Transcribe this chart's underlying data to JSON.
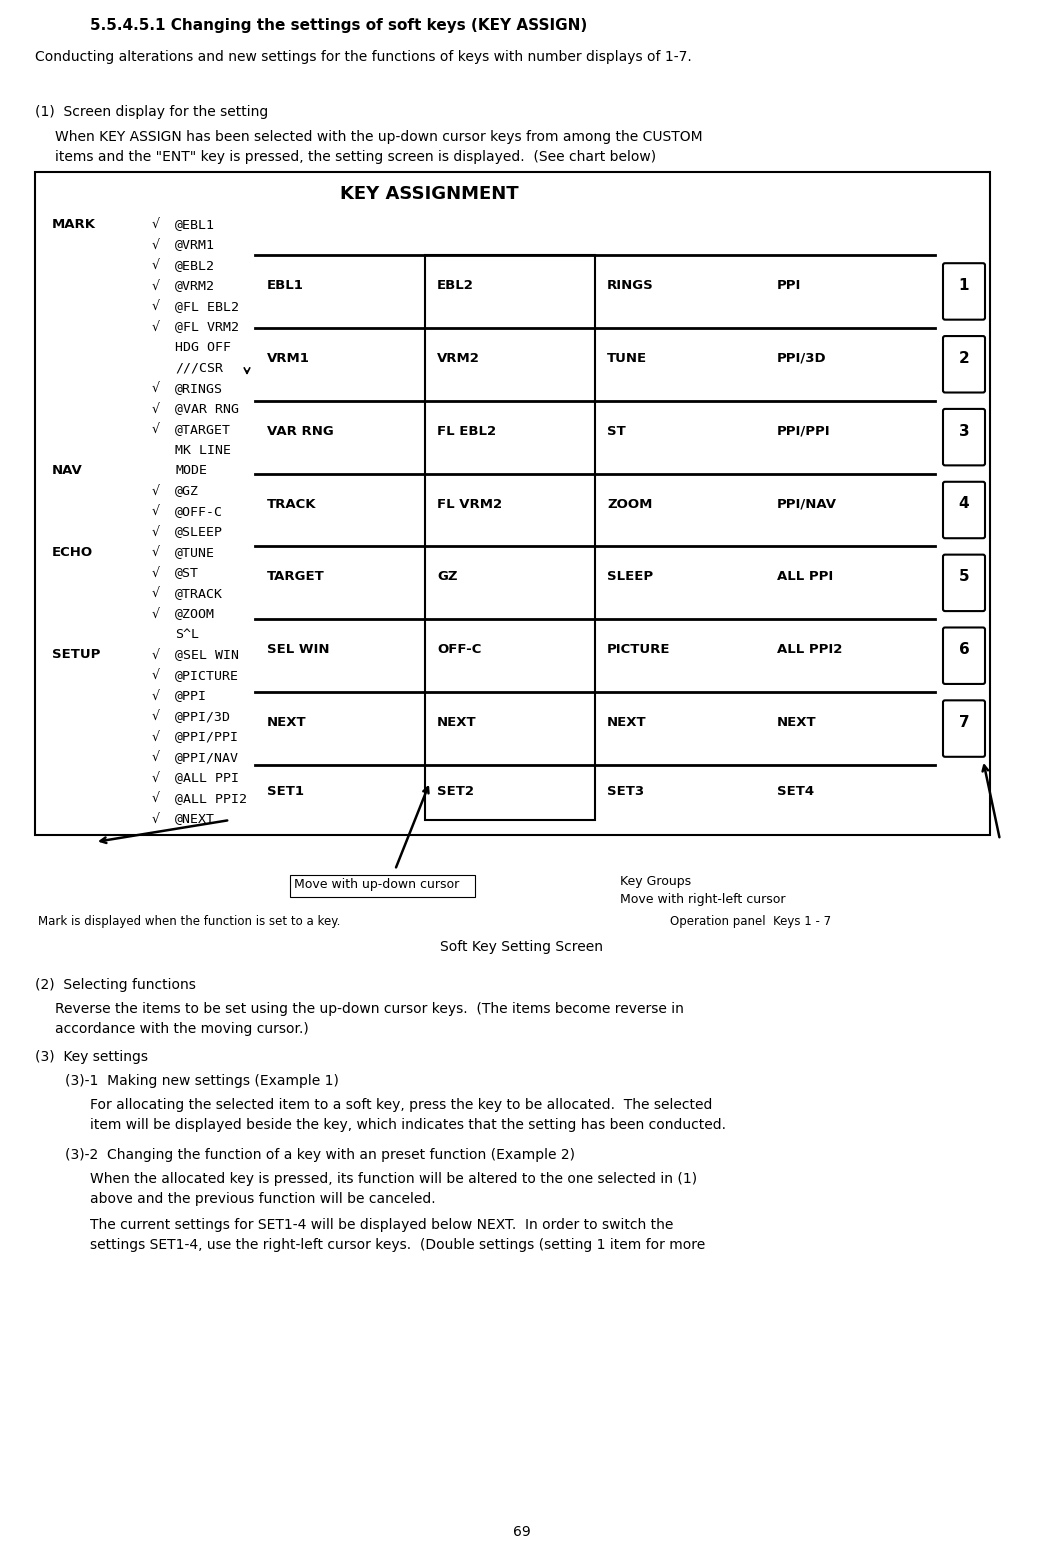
{
  "title": "5.5.4.5.1 Changing the settings of soft keys (KEY ASSIGN)",
  "subtitle": "Conducting alterations and new settings for the functions of keys with number displays of 1-7.",
  "section1_header": "(1)  Screen display for the setting",
  "section1_text1": "When KEY ASSIGN has been selected with the up-down cursor keys from among the CUSTOM",
  "section1_text2": "items and the \"ENT\" key is pressed, the setting screen is displayed.  (See chart below)",
  "section2_header": "(2)  Selecting functions",
  "section2_text1": "Reverse the items to be set using the up-down cursor keys.  (The items become reverse in",
  "section2_text2": "accordance with the moving cursor.)",
  "section3_header": "(3)  Key settings",
  "section31_header": "(3)-1  Making new settings (Example 1)",
  "section31_text1": "For allocating the selected item to a soft key, press the key to be allocated.  The selected",
  "section31_text2": "item will be displayed beside the key, which indicates that the setting has been conducted.",
  "section32_header": "(3)-2  Changing the function of a key with an preset function (Example 2)",
  "section32_text1": "When the allocated key is pressed, its function will be altered to the one selected in (1)",
  "section32_text2": "above and the previous function will be canceled.",
  "section32_text3": "The current settings for SET1-4 will be displayed below NEXT.  In order to switch the",
  "section32_text4": "settings SET1-4, use the right-left cursor keys.  (Double settings (setting 1 item for more",
  "page_number": "69",
  "chart_title": "KEY ASSIGNMENT",
  "left_groups": [
    {
      "label": "MARK",
      "label_row": 0,
      "items": [
        {
          "check": true,
          "text": "EBL1",
          "row": 0
        },
        {
          "check": true,
          "text": "VRM1",
          "row": 1
        },
        {
          "check": true,
          "text": "EBL2",
          "row": 2
        },
        {
          "check": true,
          "text": "VRM2",
          "row": 3
        },
        {
          "check": true,
          "text": "FL EBL2",
          "row": 4
        },
        {
          "check": true,
          "text": "FL VRM2",
          "row": 5
        },
        {
          "check": false,
          "text": "HDG OFF",
          "row": 6
        },
        {
          "check": false,
          "text": "///CSR",
          "row": 7
        },
        {
          "check": true,
          "text": "RINGS",
          "row": 8,
          "arrow": true
        },
        {
          "check": true,
          "text": "VAR RNG",
          "row": 9
        },
        {
          "check": true,
          "text": "TARGET",
          "row": 10
        },
        {
          "check": false,
          "text": "MK LINE",
          "row": 11
        }
      ]
    },
    {
      "label": "NAV",
      "label_row": 12,
      "items": [
        {
          "check": false,
          "text": "MODE",
          "row": 12
        },
        {
          "check": true,
          "text": "GZ",
          "row": 13
        },
        {
          "check": true,
          "text": "OFF-C",
          "row": 14
        },
        {
          "check": true,
          "text": "SLEEP",
          "row": 15
        }
      ]
    },
    {
      "label": "ECHO",
      "label_row": 16,
      "items": [
        {
          "check": true,
          "text": "TUNE",
          "row": 16
        },
        {
          "check": true,
          "text": "ST",
          "row": 17
        },
        {
          "check": true,
          "text": "TRACK",
          "row": 18
        },
        {
          "check": true,
          "text": "ZOOM",
          "row": 19
        },
        {
          "check": false,
          "text": "S^L",
          "row": 20
        }
      ]
    },
    {
      "label": "SETUP",
      "label_row": 21,
      "items": [
        {
          "check": true,
          "text": "SEL WIN",
          "row": 21
        },
        {
          "check": true,
          "text": "PICTURE",
          "row": 22
        },
        {
          "check": true,
          "text": "PPI",
          "row": 23
        },
        {
          "check": true,
          "text": "PPI/3D",
          "row": 24
        },
        {
          "check": true,
          "text": "PPI/PPI",
          "row": 25
        },
        {
          "check": true,
          "text": "PPI/NAV",
          "row": 26
        },
        {
          "check": true,
          "text": "ALL PPI",
          "row": 27
        },
        {
          "check": true,
          "text": "ALL PPI2",
          "row": 28
        },
        {
          "check": true,
          "text": "NEXT",
          "row": 29
        }
      ]
    }
  ],
  "key_rows": [
    {
      "items": [
        "EBL1",
        "EBL2",
        "RINGS",
        "PPI"
      ],
      "key": "1"
    },
    {
      "items": [
        "VRM1",
        "VRM2",
        "TUNE",
        "PPI/3D"
      ],
      "key": "2"
    },
    {
      "items": [
        "VAR RNG",
        "FL EBL2",
        "ST",
        "PPI/PPI"
      ],
      "key": "3"
    },
    {
      "items": [
        "TRACK",
        "FL VRM2",
        "ZOOM",
        "PPI/NAV"
      ],
      "key": "4"
    },
    {
      "items": [
        "TARGET",
        "GZ",
        "SLEEP",
        "ALL PPI"
      ],
      "key": "5"
    },
    {
      "items": [
        "SEL WIN",
        "OFF-C",
        "PICTURE",
        "ALL PPI2"
      ],
      "key": "6"
    },
    {
      "items": [
        "NEXT",
        "NEXT",
        "NEXT",
        "NEXT"
      ],
      "key": "7"
    }
  ],
  "set_labels": [
    "SET1",
    "SET2",
    "SET3",
    "SET4"
  ],
  "caption_left": "Move with up-down cursor",
  "caption_right_line1": "Key Groups",
  "caption_right_line2": "Move with right-left cursor",
  "bottom_left_note": "Mark is displayed when the function is set to a key.",
  "bottom_right_note": "Operation panel  Keys 1 - 7",
  "soft_key_caption": "Soft Key Setting Screen",
  "bg_color": "#ffffff"
}
